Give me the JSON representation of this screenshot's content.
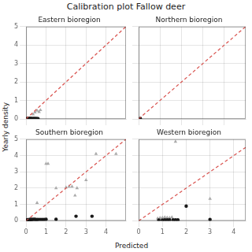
{
  "title": "Calibration plot Fallow deer",
  "xlabel": "Predicted",
  "ylabel": "Yearly density",
  "chart_data": [
    {
      "type": "scatter",
      "title": "Eastern bioregion",
      "xlim": [
        0,
        5
      ],
      "ylim": [
        0,
        5
      ],
      "xticks": [
        0,
        1,
        2,
        3,
        4
      ],
      "yticks": [
        0,
        1,
        2,
        3,
        4,
        5
      ],
      "grid": true,
      "tick_labels": "y",
      "series": [
        {
          "type": "line",
          "color": "#d9534f",
          "line_style": "dashed",
          "x": [
            0,
            5
          ],
          "values": [
            0,
            5
          ]
        },
        {
          "color": "#1a1a1a",
          "marker": "circle",
          "x": [
            0.05,
            0.08,
            0.1,
            0.12,
            0.15,
            0.18,
            0.2,
            0.22,
            0.25,
            0.28,
            0.3,
            0.35,
            0.38,
            0.42,
            0.45,
            0.5,
            0.55,
            0.6
          ],
          "values": [
            0.01,
            0.02,
            0.01,
            0.02,
            0.01,
            0.02,
            0.01,
            0.01,
            0.02,
            0.01,
            0.01,
            0.01,
            0.02,
            0.01,
            0.01,
            0.02,
            0.01,
            0.01
          ]
        },
        {
          "color": "#aaaaaa",
          "marker": "triangle",
          "x": [
            0.35,
            0.45,
            0.55,
            0.65,
            0.72
          ],
          "values": [
            0.25,
            0.35,
            0.45,
            0.38,
            0.48
          ]
        }
      ]
    },
    {
      "type": "scatter",
      "title": "Northern bioregion",
      "xlim": [
        0,
        5
      ],
      "ylim": [
        0,
        5
      ],
      "xticks": [
        0,
        1,
        2,
        3,
        4
      ],
      "yticks": [
        0,
        1,
        2,
        3,
        4,
        5
      ],
      "grid": true,
      "tick_labels": false,
      "series": [
        {
          "type": "line",
          "color": "#d9534f",
          "line_style": "dashed",
          "x": [
            0,
            5
          ],
          "values": [
            0,
            5
          ]
        },
        {
          "color": "#1a1a1a",
          "marker": "circle",
          "x": [
            0.08
          ],
          "values": [
            0.02
          ]
        }
      ]
    },
    {
      "type": "scatter",
      "title": "Southern bioregion",
      "xlim": [
        0,
        5
      ],
      "ylim": [
        0,
        5
      ],
      "xticks": [
        0,
        1,
        2,
        3,
        4
      ],
      "yticks": [
        0,
        1,
        2,
        3,
        4,
        5
      ],
      "grid": true,
      "series": [
        {
          "type": "line",
          "color": "#d9534f",
          "line_style": "dashed",
          "x": [
            0,
            5
          ],
          "values": [
            0,
            5
          ]
        },
        {
          "color": "#1a1a1a",
          "marker": "circle",
          "x": [
            0.05,
            0.08,
            0.1,
            0.12,
            0.15,
            0.18,
            0.2,
            0.22,
            0.25,
            0.28,
            0.3,
            0.35,
            0.4,
            0.45,
            0.5,
            0.55,
            0.6,
            0.7,
            0.8,
            0.9,
            1.0,
            1.5,
            2.5,
            3.3
          ],
          "values": [
            0.05,
            0.07,
            0.06,
            0.07,
            0.07,
            0.07,
            0.08,
            0.08,
            0.07,
            0.08,
            0.08,
            0.08,
            0.09,
            0.08,
            0.08,
            0.07,
            0.08,
            0.08,
            0.08,
            0.08,
            0.09,
            0.09,
            0.28,
            0.28
          ]
        },
        {
          "color": "#aaaaaa",
          "marker": "triangle",
          "x": [
            0.55,
            1.0,
            1.1,
            1.5,
            2.0,
            2.15,
            2.3,
            2.45,
            2.55,
            3.0,
            3.5,
            4.5
          ],
          "values": [
            1.1,
            3.5,
            3.5,
            2.0,
            2.05,
            2.1,
            2.1,
            1.55,
            2.0,
            2.5,
            4.1,
            4.1
          ]
        }
      ]
    },
    {
      "type": "scatter",
      "title": "Western bioregion",
      "xlim": [
        0,
        4.5
      ],
      "ylim": [
        0,
        5
      ],
      "xticks": [
        0,
        1,
        2,
        3,
        4
      ],
      "yticks": [
        0,
        1,
        2,
        3,
        4,
        5
      ],
      "grid": true,
      "tick_labels": "x",
      "series": [
        {
          "type": "line",
          "color": "#d9534f",
          "line_style": "dashed",
          "x": [
            0,
            4.5
          ],
          "values": [
            0,
            4.5
          ]
        },
        {
          "color": "#1a1a1a",
          "marker": "circle",
          "x": [
            0.85,
            1.0,
            1.1,
            1.2,
            1.3,
            1.45,
            1.55,
            1.65,
            2.0,
            3.0
          ],
          "values": [
            0.05,
            0.05,
            0.06,
            0.06,
            0.06,
            0.06,
            0.06,
            0.06,
            0.9,
            0.08
          ]
        },
        {
          "color": "#aaaaaa",
          "marker": "triangle",
          "x": [
            0.8,
            0.9,
            1.0,
            1.1,
            1.2,
            1.3,
            1.4,
            1.55,
            3.0
          ],
          "values": [
            0.15,
            0.18,
            0.2,
            0.22,
            0.2,
            0.18,
            0.22,
            4.85,
            1.35
          ]
        }
      ]
    }
  ]
}
